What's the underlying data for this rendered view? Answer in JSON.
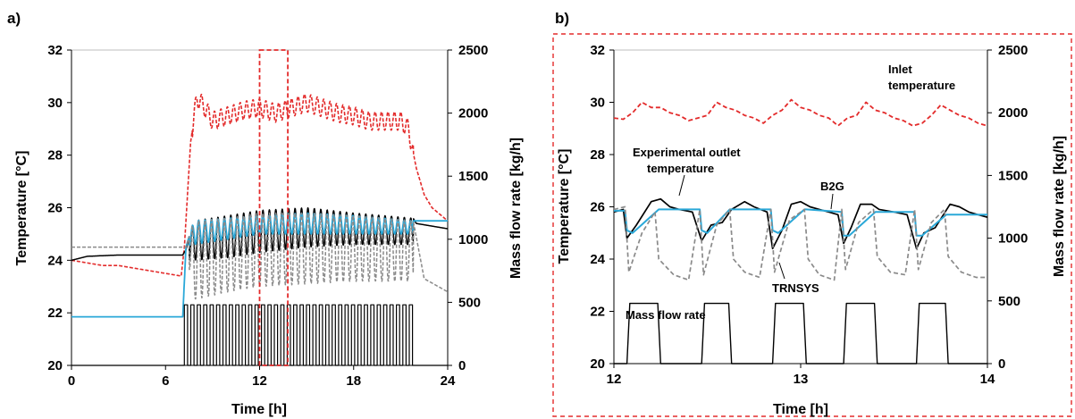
{
  "colors": {
    "inlet": "#e32b2b",
    "outlet": "#000000",
    "b2g": "#2aa8d8",
    "trnsys": "#8a8a8a",
    "mass_flow": "#000000",
    "highlight": "#e32b2b"
  },
  "chart_data": [
    {
      "type": "line",
      "panel_label": "a)",
      "xlabel": "Time [h]",
      "ylabel": "Temperature [°C]",
      "y2label": "Mass flow rate [kg/h]",
      "xlim": [
        0,
        24
      ],
      "ylim": [
        20,
        32
      ],
      "y2lim": [
        0,
        2500
      ],
      "x_ticks": [
        0,
        6,
        12,
        18,
        24
      ],
      "y_ticks": [
        20,
        22,
        24,
        26,
        28,
        30,
        32
      ],
      "y2_ticks": [
        0,
        500,
        1000,
        1500,
        2000,
        2500
      ],
      "grid": false,
      "highlight_box": {
        "x": [
          12,
          13.8
        ],
        "y": [
          20,
          32
        ]
      },
      "series": [
        {
          "axis": "y",
          "style": "dashed",
          "x": [
            0,
            1,
            2,
            3,
            4,
            5,
            6,
            7,
            7.2,
            7.6,
            8,
            8.5,
            9,
            10,
            11,
            12,
            13,
            14,
            15,
            16,
            17,
            18,
            19,
            20,
            21,
            21.5,
            22,
            22.5,
            23,
            24
          ],
          "y": [
            24.0,
            23.9,
            23.8,
            23.8,
            23.7,
            23.6,
            23.5,
            23.4,
            24.5,
            28.5,
            30.2,
            29.8,
            29.3,
            29.5,
            29.7,
            29.8,
            29.6,
            29.8,
            30.0,
            29.8,
            29.6,
            29.5,
            29.3,
            29.3,
            29.3,
            29.0,
            27.5,
            26.5,
            26.0,
            25.5
          ],
          "osc_amp": 0.35,
          "osc_range": [
            7.7,
            21.8
          ]
        },
        {
          "axis": "y",
          "style": "solid",
          "x": [
            0,
            1,
            3,
            5,
            7.1,
            7.3,
            7.8,
            10,
            12,
            15,
            18,
            21.8,
            22,
            24
          ],
          "y": [
            24.0,
            24.15,
            24.2,
            24.2,
            24.2,
            24.4,
            25.5,
            25.7,
            25.9,
            26.0,
            25.8,
            25.6,
            25.4,
            25.2
          ],
          "lower": [
            24.0,
            24.15,
            24.2,
            24.2,
            24.2,
            24.0,
            24.0,
            24.1,
            24.3,
            24.5,
            24.6,
            24.6,
            25.4,
            25.2
          ],
          "osc_range": [
            7.5,
            21.8
          ]
        },
        {
          "axis": "y",
          "style": "solid",
          "x": [
            0,
            5,
            7.1,
            7.3,
            7.8,
            10,
            12,
            15,
            18,
            21.8,
            24
          ],
          "y": [
            21.85,
            21.85,
            21.85,
            24.5,
            25.5,
            25.6,
            25.7,
            25.8,
            25.7,
            25.5,
            25.5
          ],
          "lower": [
            21.85,
            21.85,
            21.85,
            24.5,
            24.6,
            24.8,
            25.0,
            25.0,
            25.0,
            25.0,
            25.5
          ],
          "osc_range": [
            7.5,
            21.8
          ]
        },
        {
          "axis": "y",
          "style": "dashed",
          "x": [
            7.3,
            7.8,
            10,
            12,
            15,
            18,
            21.8,
            22.5,
            24
          ],
          "y": [
            24.5,
            25.5,
            25.6,
            25.8,
            25.8,
            25.7,
            25.5,
            23.3,
            22.8
          ],
          "lower": [
            24.5,
            22.5,
            22.8,
            23.0,
            23.1,
            23.2,
            23.2,
            23.3,
            22.8
          ],
          "osc_range": [
            7.5,
            21.8
          ]
        },
        {
          "axis": "y2",
          "style": "square",
          "x": [
            0,
            7.2,
            7.2,
            21.8,
            21.8,
            24
          ],
          "y": [
            0,
            0,
            480,
            480,
            0,
            0
          ],
          "period": 0.41
        }
      ]
    },
    {
      "type": "line",
      "panel_label": "b)",
      "xlabel": "Time [h]",
      "ylabel": "Temperature [°C]",
      "y2label": "Mass flow rate [kg/h]",
      "xlim": [
        12,
        14
      ],
      "ylim": [
        20,
        32
      ],
      "y2lim": [
        0,
        2500
      ],
      "x_ticks": [
        12,
        13,
        14
      ],
      "y_ticks": [
        20,
        22,
        24,
        26,
        28,
        30,
        32
      ],
      "y2_ticks": [
        0,
        500,
        1000,
        1500,
        2000,
        2500
      ],
      "grid": false,
      "annotations": [
        "Inlet",
        "temperature",
        "Experimental outlet",
        "temperature",
        "B2G",
        "Mass flow rate",
        "TRNSYS"
      ],
      "pulses": [
        [
          12.07,
          12.25
        ],
        [
          12.47,
          12.63
        ],
        [
          12.85,
          13.03
        ],
        [
          13.23,
          13.41
        ],
        [
          13.62,
          13.79
        ]
      ],
      "series": [
        {
          "axis": "y",
          "style": "dashed",
          "x": [
            12.0,
            12.05,
            12.1,
            12.15,
            12.2,
            12.25,
            12.3,
            12.35,
            12.4,
            12.45,
            12.5,
            12.55,
            12.6,
            12.65,
            12.7,
            12.75,
            12.8,
            12.85,
            12.9,
            12.95,
            13.0,
            13.05,
            13.1,
            13.15,
            13.2,
            13.25,
            13.3,
            13.35,
            13.4,
            13.45,
            13.5,
            13.55,
            13.6,
            13.65,
            13.7,
            13.75,
            13.8,
            13.85,
            13.9,
            13.95,
            14.0
          ],
          "y": [
            29.4,
            29.35,
            29.6,
            30.0,
            29.8,
            29.8,
            29.6,
            29.5,
            29.3,
            29.4,
            29.5,
            30.0,
            29.8,
            29.7,
            29.5,
            29.4,
            29.2,
            29.5,
            29.7,
            30.1,
            29.8,
            29.7,
            29.5,
            29.4,
            29.1,
            29.4,
            29.5,
            30.0,
            29.7,
            29.6,
            29.4,
            29.3,
            29.1,
            29.2,
            29.5,
            29.9,
            29.7,
            29.5,
            29.4,
            29.2,
            29.1
          ]
        },
        {
          "axis": "y",
          "style": "solid",
          "x": [
            12.0,
            12.05,
            12.07,
            12.12,
            12.2,
            12.25,
            12.3,
            12.35,
            12.42,
            12.47,
            12.52,
            12.58,
            12.63,
            12.7,
            12.75,
            12.82,
            12.85,
            12.9,
            12.95,
            13.0,
            13.05,
            13.1,
            13.15,
            13.2,
            13.23,
            13.27,
            13.32,
            13.38,
            13.42,
            13.5,
            13.57,
            13.62,
            13.66,
            13.72,
            13.8,
            13.85,
            13.9,
            13.95,
            14.0
          ],
          "y": [
            25.8,
            25.9,
            24.8,
            25.3,
            26.2,
            26.3,
            26.0,
            25.9,
            25.8,
            24.7,
            25.3,
            25.4,
            25.9,
            26.2,
            26.0,
            25.8,
            24.4,
            25.1,
            26.1,
            26.2,
            26.0,
            25.9,
            25.8,
            25.7,
            24.6,
            25.2,
            26.1,
            26.1,
            25.9,
            25.8,
            25.7,
            24.4,
            25.0,
            25.2,
            26.1,
            26.0,
            25.8,
            25.7,
            25.6
          ]
        },
        {
          "axis": "y",
          "style": "solid",
          "x": [
            12.0,
            12.06,
            12.07,
            12.1,
            12.24,
            12.25,
            12.46,
            12.47,
            12.5,
            12.62,
            12.63,
            12.84,
            12.85,
            12.88,
            13.02,
            13.03,
            13.22,
            13.23,
            13.26,
            13.4,
            13.41,
            13.61,
            13.62,
            13.65,
            13.78,
            13.79,
            14.0
          ],
          "y": [
            25.85,
            25.85,
            25.1,
            25.0,
            25.9,
            25.9,
            25.9,
            25.1,
            25.0,
            25.9,
            25.9,
            25.9,
            25.1,
            25.0,
            25.9,
            25.9,
            25.8,
            24.9,
            24.9,
            25.8,
            25.8,
            25.8,
            24.9,
            24.9,
            25.7,
            25.7,
            25.7
          ]
        },
        {
          "axis": "y",
          "style": "dashed",
          "x": [
            12.0,
            12.06,
            12.08,
            12.15,
            12.22,
            12.24,
            12.32,
            12.4,
            12.46,
            12.48,
            12.55,
            12.62,
            12.64,
            12.7,
            12.78,
            12.84,
            12.86,
            12.94,
            13.02,
            13.04,
            13.1,
            13.18,
            13.22,
            13.24,
            13.31,
            13.39,
            13.41,
            13.48,
            13.56,
            13.61,
            13.63,
            13.7,
            13.77,
            13.79,
            13.86,
            13.94,
            14.0
          ],
          "y": [
            25.9,
            26.0,
            23.5,
            25.0,
            25.8,
            24.0,
            23.4,
            23.2,
            25.9,
            23.4,
            25.3,
            25.9,
            24.0,
            23.5,
            23.3,
            25.9,
            23.5,
            25.5,
            25.9,
            24.0,
            23.4,
            23.2,
            25.9,
            23.6,
            25.4,
            25.9,
            24.1,
            23.5,
            23.4,
            25.9,
            23.6,
            25.4,
            25.9,
            24.1,
            23.5,
            23.3,
            23.3
          ]
        },
        {
          "axis": "y2",
          "style": "pulse",
          "x": [
            12.0,
            14.0
          ],
          "y": [
            0,
            480
          ]
        }
      ]
    }
  ]
}
